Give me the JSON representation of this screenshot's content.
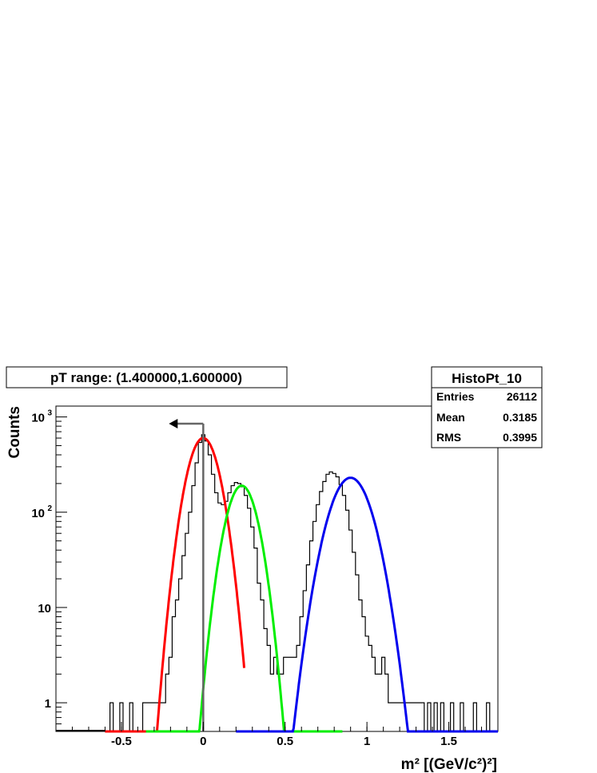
{
  "chart_data": {
    "type": "line",
    "title": "pT range: (1.400000,1.600000)",
    "xlabel": "m² [(GeV/c²)²]",
    "ylabel": "Counts",
    "xlim": [
      -0.9,
      1.8
    ],
    "ylim": [
      0.5,
      1300
    ],
    "y_scale": "log",
    "x_ticks": [
      {
        "value": -0.5,
        "label": "-0.5"
      },
      {
        "value": 0,
        "label": "0"
      },
      {
        "value": 0.5,
        "label": "0.5"
      },
      {
        "value": 1,
        "label": "1"
      },
      {
        "value": 1.5,
        "label": "1.5"
      }
    ],
    "y_ticks": [
      {
        "value": 1,
        "label": "1"
      },
      {
        "value": 10,
        "label": "10"
      },
      {
        "value": 100,
        "label": "10",
        "sup": "2"
      },
      {
        "value": 1000,
        "label": "10",
        "sup": "3"
      }
    ],
    "stats": {
      "name": "HistoPt_10",
      "rows": [
        {
          "label": "Entries",
          "value": "26112"
        },
        {
          "label": "Mean",
          "value": "0.3185"
        },
        {
          "label": "RMS",
          "value": "0.3995"
        }
      ]
    },
    "cut_marker": {
      "x": 0.0,
      "y_top": 850,
      "direction": "left",
      "color": "#666666"
    },
    "histogram": {
      "color": "#000000",
      "x": [
        -0.56,
        -0.5,
        -0.44,
        -0.36,
        -0.34,
        -0.32,
        -0.3,
        -0.28,
        -0.26,
        -0.24,
        -0.22,
        -0.2,
        -0.18,
        -0.16,
        -0.14,
        -0.12,
        -0.1,
        -0.08,
        -0.06,
        -0.04,
        -0.02,
        0.0,
        0.02,
        0.04,
        0.06,
        0.08,
        0.1,
        0.12,
        0.14,
        0.16,
        0.18,
        0.2,
        0.22,
        0.24,
        0.26,
        0.28,
        0.3,
        0.32,
        0.34,
        0.36,
        0.38,
        0.4,
        0.42,
        0.44,
        0.46,
        0.48,
        0.5,
        0.52,
        0.54,
        0.56,
        0.58,
        0.6,
        0.62,
        0.64,
        0.66,
        0.68,
        0.7,
        0.72,
        0.74,
        0.76,
        0.78,
        0.8,
        0.82,
        0.84,
        0.86,
        0.88,
        0.9,
        0.92,
        0.94,
        0.96,
        0.98,
        1.0,
        1.02,
        1.04,
        1.06,
        1.08,
        1.1,
        1.12,
        1.14,
        1.16,
        1.18,
        1.2,
        1.22,
        1.24,
        1.26,
        1.28,
        1.3,
        1.32,
        1.34,
        1.38,
        1.42,
        1.46,
        1.52,
        1.58,
        1.66,
        1.74
      ],
      "values": [
        1,
        1,
        1,
        1,
        1,
        1,
        1,
        1,
        1,
        1,
        2,
        3,
        8,
        12,
        20,
        35,
        60,
        100,
        190,
        330,
        540,
        650,
        560,
        400,
        250,
        160,
        125,
        120,
        130,
        160,
        190,
        205,
        200,
        185,
        150,
        110,
        70,
        42,
        18,
        12,
        6,
        4,
        2,
        3,
        2,
        2,
        3,
        3,
        3,
        3,
        4,
        8,
        15,
        28,
        50,
        80,
        120,
        165,
        210,
        250,
        265,
        255,
        235,
        195,
        150,
        105,
        65,
        38,
        22,
        12,
        8,
        5,
        4,
        3,
        2,
        2,
        3,
        2,
        1,
        1,
        1,
        1,
        1,
        1,
        1,
        1,
        1,
        1,
        1,
        1,
        1,
        1,
        1,
        1,
        1,
        1
      ]
    },
    "series": [
      {
        "name": "",
        "color": "#ff0000",
        "amplitude": 600,
        "mean": 0.0,
        "sigma": 0.075,
        "range": [
          -0.6,
          0.25
        ]
      },
      {
        "name": "",
        "color": "#00ee00",
        "amplitude": 190,
        "mean": 0.235,
        "sigma": 0.075,
        "range": [
          -0.35,
          0.85
        ]
      },
      {
        "name": "",
        "color": "#0000ee",
        "amplitude": 230,
        "mean": 0.9,
        "sigma": 0.1,
        "range": [
          0.2,
          1.8
        ]
      }
    ]
  }
}
